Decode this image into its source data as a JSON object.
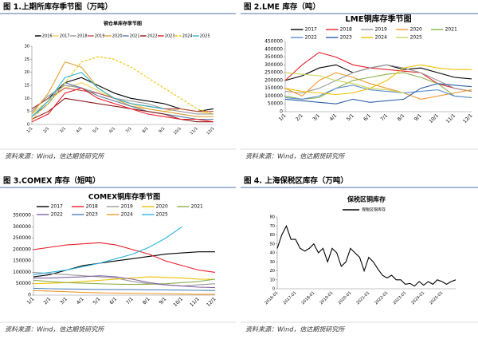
{
  "chart_data": [
    {
      "type": "line",
      "caption": "图 1.上期所库存季节图（万吨）",
      "title": "铜仓单库存季节图",
      "source": "资料来源：Wind，信达期货研究所",
      "categories": [
        "1/1",
        "2/1",
        "3/1",
        "4/1",
        "5/1",
        "6/1",
        "7/1",
        "8/1",
        "9/1",
        "10/1",
        "11/1",
        "12/1"
      ],
      "ylim": [
        0,
        30
      ],
      "yticks": [
        0,
        5,
        10,
        15,
        20,
        25,
        30
      ],
      "grid": false,
      "series": [
        {
          "name": "2016",
          "color": "#000000",
          "values": [
            6,
            10,
            16,
            18,
            15,
            12,
            10,
            9,
            8,
            6,
            5,
            6
          ]
        },
        {
          "name": "2017",
          "color": "#f2d15c",
          "values": [
            4,
            9,
            14,
            16,
            13,
            10,
            8,
            6,
            5,
            6,
            5,
            4
          ]
        },
        {
          "name": "2018",
          "color": "#9a9a9a",
          "values": [
            5,
            11,
            15,
            14,
            12,
            10,
            9,
            8,
            6,
            5,
            4,
            4
          ]
        },
        {
          "name": "2019",
          "color": "#c0504d",
          "values": [
            6,
            10,
            14,
            13,
            12,
            10,
            8,
            7,
            6,
            6,
            5,
            5
          ]
        },
        {
          "name": "2020",
          "color": "#e0a030",
          "values": [
            4,
            12,
            24,
            22,
            14,
            10,
            7,
            6,
            5,
            4,
            3,
            3
          ]
        },
        {
          "name": "2021",
          "color": "#5b7fa8",
          "values": [
            3,
            8,
            16,
            14,
            11,
            9,
            7,
            5,
            4,
            3,
            2,
            2
          ]
        },
        {
          "name": "2022",
          "color": "#8b1a1a",
          "values": [
            2,
            5,
            10,
            9,
            8,
            7,
            6,
            5,
            4,
            2,
            1,
            1
          ]
        },
        {
          "name": "2023",
          "color": "#e8202a",
          "values": [
            1,
            4,
            12,
            14,
            10,
            8,
            6,
            4,
            3,
            2,
            2,
            1
          ]
        },
        {
          "name": "2024",
          "color": "#f0c000",
          "dashed": true,
          "values": [
            2,
            8,
            16,
            24,
            26,
            25,
            22,
            18,
            14,
            10,
            6,
            4
          ]
        },
        {
          "name": "2025",
          "color": "#2bb5c9",
          "values": [
            3,
            9,
            18,
            20,
            14,
            10,
            8,
            7,
            6,
            null,
            null,
            null
          ]
        }
      ]
    },
    {
      "type": "line",
      "caption": "图 2.LME 库存（吨）",
      "title": "LME铜库存季节图",
      "source": "资料来源：Wind，信达期货研究所",
      "categories": [
        "1/1",
        "2/1",
        "3/1",
        "4/1",
        "5/1",
        "6/1",
        "7/1",
        "8/1",
        "9/1",
        "10/1",
        "11/1",
        "12/1"
      ],
      "ylim": [
        0,
        450000
      ],
      "yticks": [
        0,
        50000,
        100000,
        150000,
        200000,
        250000,
        300000,
        350000,
        400000,
        450000
      ],
      "grid": false,
      "series": [
        {
          "name": "2017",
          "color": "#000000",
          "values": [
            200000,
            230000,
            280000,
            300000,
            250000,
            280000,
            300000,
            270000,
            280000,
            250000,
            220000,
            210000
          ]
        },
        {
          "name": "2018",
          "color": "#e8202a",
          "values": [
            200000,
            300000,
            380000,
            350000,
            300000,
            280000,
            270000,
            260000,
            250000,
            180000,
            150000,
            130000
          ]
        },
        {
          "name": "2019",
          "color": "#9a9a9a",
          "values": [
            130000,
            120000,
            150000,
            200000,
            250000,
            280000,
            300000,
            280000,
            250000,
            200000,
            150000,
            130000
          ]
        },
        {
          "name": "2020",
          "color": "#f29a2e",
          "values": [
            150000,
            100000,
            200000,
            250000,
            220000,
            180000,
            150000,
            120000,
            80000,
            100000,
            120000,
            140000
          ]
        },
        {
          "name": "2021",
          "color": "#8cb04a",
          "values": [
            100000,
            80000,
            90000,
            150000,
            200000,
            220000,
            240000,
            250000,
            220000,
            180000,
            100000,
            90000
          ]
        },
        {
          "name": "2022",
          "color": "#5b8fd0",
          "values": [
            90000,
            80000,
            100000,
            150000,
            170000,
            140000,
            130000,
            120000,
            130000,
            140000,
            100000,
            90000
          ]
        },
        {
          "name": "2023",
          "color": "#2e5fa8",
          "values": [
            80000,
            70000,
            60000,
            50000,
            80000,
            60000,
            70000,
            80000,
            150000,
            180000,
            170000,
            160000
          ]
        },
        {
          "name": "2024",
          "color": "#f0c000",
          "values": [
            150000,
            130000,
            120000,
            110000,
            120000,
            150000,
            200000,
            280000,
            300000,
            280000,
            270000,
            270000
          ]
        },
        {
          "name": "2025",
          "color": "#c9d65a",
          "values": [
            250000,
            240000,
            230000,
            200000,
            180000,
            150000,
            140000,
            120000,
            null,
            null,
            null,
            null
          ]
        }
      ]
    },
    {
      "type": "line",
      "caption": "图 3.COMEX 库存（短吨）",
      "title": "COMEX铜库存季节图",
      "source": "资料来源：Wind，信达期货研究所",
      "categories": [
        "1/1",
        "2/1",
        "3/1",
        "4/1",
        "5/1",
        "6/1",
        "7/1",
        "8/1",
        "9/1",
        "10/1",
        "11/1",
        "12/1"
      ],
      "ylim": [
        0,
        350000
      ],
      "yticks": [
        0,
        50000,
        100000,
        150000,
        200000,
        250000,
        300000,
        350000
      ],
      "grid": false,
      "series": [
        {
          "name": "2017",
          "color": "#000000",
          "values": [
            80000,
            90000,
            110000,
            130000,
            140000,
            150000,
            160000,
            170000,
            180000,
            185000,
            190000,
            190000
          ]
        },
        {
          "name": "2018",
          "color": "#e8202a",
          "values": [
            200000,
            210000,
            220000,
            225000,
            230000,
            220000,
            200000,
            180000,
            150000,
            130000,
            110000,
            100000
          ]
        },
        {
          "name": "2019",
          "color": "#9a9a9a",
          "values": [
            100000,
            95000,
            90000,
            85000,
            80000,
            75000,
            60000,
            50000,
            45000,
            40000,
            45000,
            50000
          ]
        },
        {
          "name": "2020",
          "color": "#f0c000",
          "values": [
            50000,
            52000,
            55000,
            60000,
            65000,
            70000,
            75000,
            80000,
            78000,
            75000,
            70000,
            70000
          ]
        },
        {
          "name": "2021",
          "color": "#8cb04a",
          "values": [
            65000,
            60000,
            55000,
            52000,
            50000,
            48000,
            47000,
            48000,
            50000,
            55000,
            60000,
            70000
          ]
        },
        {
          "name": "2022",
          "color": "#8064a2",
          "values": [
            75000,
            75000,
            78000,
            80000,
            85000,
            80000,
            70000,
            55000,
            45000,
            40000,
            35000,
            33000
          ]
        },
        {
          "name": "2023",
          "color": "#4f81bd",
          "values": [
            30000,
            28000,
            27000,
            26000,
            25000,
            24000,
            24000,
            23000,
            23000,
            22000,
            21000,
            20000
          ]
        },
        {
          "name": "2024",
          "color": "#f29a2e",
          "values": [
            20000,
            18000,
            15000,
            12000,
            10000,
            9000,
            8000,
            7000,
            6000,
            5000,
            4000,
            4000
          ]
        },
        {
          "name": "2025",
          "color": "#2bb5e0",
          "values": [
            90000,
            100000,
            110000,
            125000,
            140000,
            160000,
            180000,
            210000,
            250000,
            300000,
            null,
            null
          ]
        }
      ]
    },
    {
      "type": "line",
      "caption": "图 4. 上海保税区库存（万吨）",
      "title": "保税区铜库存",
      "source": "资料来源：Wind，信达期货研究所",
      "categories": [
        "2016-01",
        null,
        null,
        null,
        "2017-01",
        null,
        null,
        null,
        "2018-01",
        null,
        null,
        null,
        "2019-01",
        null,
        null,
        null,
        "2020-01",
        null,
        null,
        null,
        "2021-01",
        null,
        null,
        null,
        "2022-01",
        null,
        null,
        null,
        "2023-01",
        null,
        null,
        null,
        "2024-01",
        null,
        null,
        null,
        "2025-01",
        null,
        null,
        null
      ],
      "ylim": [
        0,
        80
      ],
      "yticks": [
        0,
        10,
        20,
        30,
        40,
        50,
        60,
        70,
        80
      ],
      "grid": false,
      "series": [
        {
          "name": "保税区铜库存",
          "color": "#000000",
          "values": [
            45,
            60,
            70,
            55,
            55,
            45,
            42,
            45,
            50,
            40,
            45,
            30,
            45,
            40,
            25,
            30,
            45,
            40,
            35,
            20,
            35,
            30,
            22,
            15,
            12,
            15,
            10,
            10,
            5,
            6,
            3,
            8,
            4,
            8,
            5,
            10,
            8,
            5,
            8,
            10
          ]
        }
      ]
    }
  ]
}
